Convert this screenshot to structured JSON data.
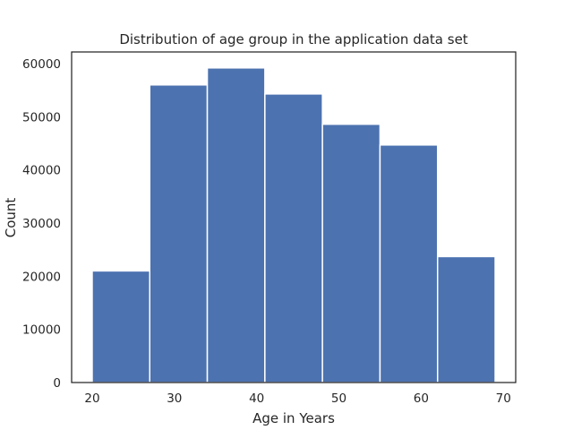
{
  "chart_data": {
    "type": "bar",
    "title": "Distribution of age group in the application data set",
    "xlabel": "Age in Years",
    "ylabel": "Count",
    "bins": [
      {
        "x0": 20.0,
        "x1": 27.0,
        "count": 21000
      },
      {
        "x0": 27.0,
        "x1": 34.0,
        "count": 56000
      },
      {
        "x0": 34.0,
        "x1": 41.0,
        "count": 59200
      },
      {
        "x0": 41.0,
        "x1": 48.0,
        "count": 54300
      },
      {
        "x0": 48.0,
        "x1": 55.0,
        "count": 48600
      },
      {
        "x0": 55.0,
        "x1": 62.0,
        "count": 44700
      },
      {
        "x0": 62.0,
        "x1": 69.0,
        "count": 23700
      }
    ],
    "xticks": [
      20,
      30,
      40,
      50,
      60,
      70
    ],
    "yticks": [
      0,
      10000,
      20000,
      30000,
      40000,
      50000,
      60000
    ],
    "xlim": [
      17.5,
      71.5
    ],
    "ylim": [
      0,
      62200
    ],
    "bar_color": "#4c72b0",
    "edge_color": "#ffffff",
    "grid": false
  }
}
